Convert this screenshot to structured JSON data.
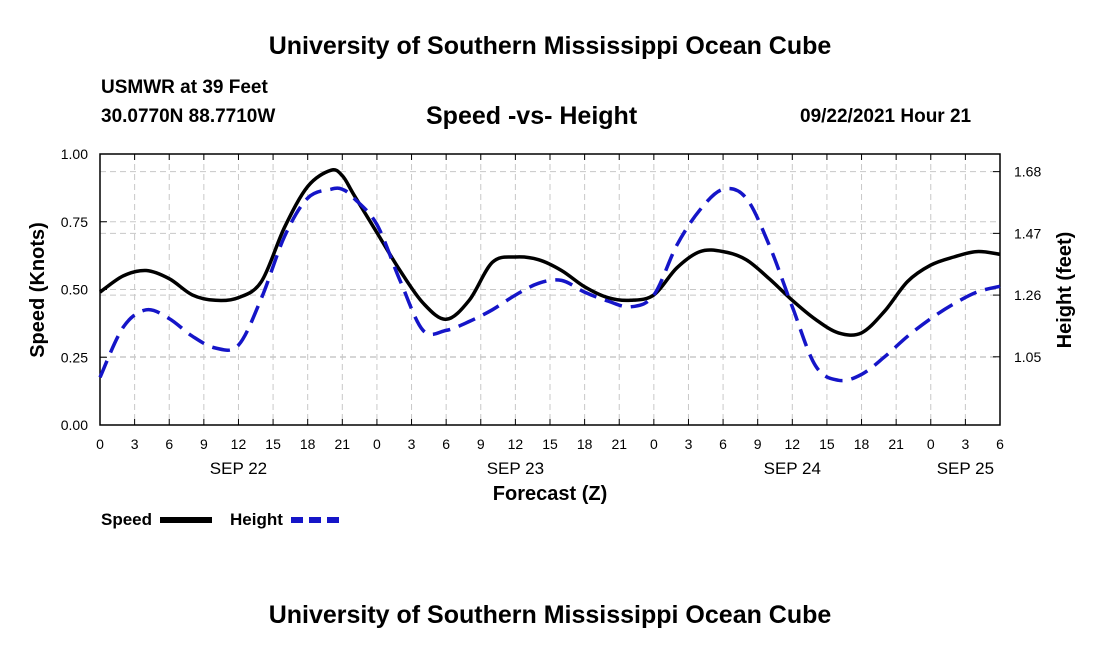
{
  "page": {
    "title_top": "University of Southern Mississippi Ocean Cube",
    "title_bottom": "University of Southern Mississippi Ocean Cube",
    "station": "USMWR at 39 Feet",
    "coords": "30.0770N  88.7710W",
    "timestamp": "09/22/2021 Hour 21"
  },
  "chart_data": {
    "type": "line",
    "title": "Speed -vs- Height",
    "xlabel": "Forecast (Z)",
    "ylabel_left": "Speed (Knots)",
    "ylabel_right": "Height (feet)",
    "x_start_hour": 0,
    "x_end_hour": 78,
    "x_tick_labels": [
      "0",
      "3",
      "6",
      "9",
      "12",
      "15",
      "18",
      "21",
      "0",
      "3",
      "6",
      "9",
      "12",
      "15",
      "18",
      "21",
      "0",
      "3",
      "6",
      "9",
      "12",
      "15",
      "18",
      "21",
      "0",
      "3",
      "6"
    ],
    "date_labels": [
      {
        "label": "SEP 22",
        "hour": 12
      },
      {
        "label": "SEP 23",
        "hour": 36
      },
      {
        "label": "SEP 24",
        "hour": 60
      },
      {
        "label": "SEP 25",
        "hour": 75
      }
    ],
    "ylim_left": [
      0,
      1.0
    ],
    "yticks_left": [
      "0.00",
      "0.25",
      "0.50",
      "0.75",
      "1.00"
    ],
    "ylim_right": [
      0.818,
      1.74
    ],
    "yticks_right": [
      "1.05",
      "1.26",
      "1.47",
      "1.68"
    ],
    "grid": true,
    "legend": [
      {
        "name": "Speed",
        "color": "#000000",
        "style": "solid"
      },
      {
        "name": "Height",
        "color": "#1515c8",
        "style": "dashed"
      }
    ],
    "series": [
      {
        "name": "Speed",
        "axis": "left",
        "color": "#000000",
        "x": [
          0,
          2,
          4,
          6,
          8,
          10,
          12,
          14,
          16,
          18,
          20,
          21,
          22,
          24,
          26,
          28,
          30,
          32,
          34,
          36,
          38,
          40,
          42,
          44,
          46,
          48,
          50,
          52,
          54,
          56,
          58,
          60,
          62,
          64,
          66,
          68,
          70,
          72,
          74,
          76,
          78
        ],
        "values": [
          0.49,
          0.55,
          0.57,
          0.54,
          0.48,
          0.46,
          0.47,
          0.53,
          0.73,
          0.88,
          0.94,
          0.92,
          0.85,
          0.71,
          0.57,
          0.45,
          0.39,
          0.46,
          0.6,
          0.62,
          0.61,
          0.57,
          0.51,
          0.47,
          0.46,
          0.48,
          0.58,
          0.64,
          0.64,
          0.61,
          0.54,
          0.46,
          0.39,
          0.34,
          0.34,
          0.42,
          0.53,
          0.59,
          0.62,
          0.64,
          0.63
        ]
      },
      {
        "name": "Height",
        "axis": "right",
        "color": "#1515c8",
        "x": [
          0,
          2,
          4,
          6,
          8,
          10,
          12,
          14,
          16,
          18,
          20,
          21,
          22,
          24,
          26,
          28,
          30,
          32,
          34,
          36,
          38,
          40,
          42,
          44,
          46,
          48,
          50,
          52,
          54,
          56,
          58,
          60,
          62,
          64,
          66,
          68,
          70,
          72,
          74,
          76,
          78
        ],
        "values": [
          0.98,
          1.15,
          1.21,
          1.18,
          1.12,
          1.08,
          1.09,
          1.25,
          1.46,
          1.59,
          1.62,
          1.62,
          1.59,
          1.5,
          1.31,
          1.14,
          1.14,
          1.17,
          1.21,
          1.26,
          1.3,
          1.31,
          1.27,
          1.24,
          1.22,
          1.26,
          1.43,
          1.55,
          1.62,
          1.59,
          1.43,
          1.22,
          1.02,
          0.97,
          0.99,
          1.05,
          1.12,
          1.18,
          1.23,
          1.27,
          1.29
        ]
      }
    ]
  }
}
